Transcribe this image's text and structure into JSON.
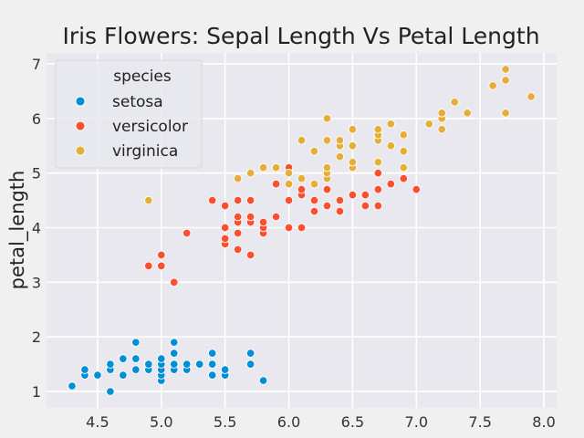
{
  "chart_data": {
    "type": "scatter",
    "title": "Iris Flowers: Sepal Length Vs Petal Length",
    "xlabel": "sepal_length",
    "ylabel": "petal_length",
    "xlim": [
      4.1,
      8.1
    ],
    "ylim": [
      0.7,
      7.2
    ],
    "xticks": [
      4.5,
      5.0,
      5.5,
      6.0,
      6.5,
      7.0,
      7.5,
      8.0
    ],
    "yticks": [
      1,
      2,
      3,
      4,
      5,
      6,
      7
    ],
    "grid": true,
    "legend": {
      "title": "species",
      "placement": "top-left"
    },
    "series": [
      {
        "name": "setosa",
        "color": "#008fd5",
        "points": [
          [
            4.3,
            1.1
          ],
          [
            4.4,
            1.3
          ],
          [
            4.4,
            1.4
          ],
          [
            4.5,
            1.3
          ],
          [
            4.6,
            1.0
          ],
          [
            4.6,
            1.4
          ],
          [
            4.6,
            1.5
          ],
          [
            4.7,
            1.3
          ],
          [
            4.7,
            1.6
          ],
          [
            4.8,
            1.4
          ],
          [
            4.8,
            1.6
          ],
          [
            4.8,
            1.9
          ],
          [
            4.9,
            1.4
          ],
          [
            4.9,
            1.5
          ],
          [
            5.0,
            1.2
          ],
          [
            5.0,
            1.3
          ],
          [
            5.0,
            1.4
          ],
          [
            5.0,
            1.5
          ],
          [
            5.0,
            1.6
          ],
          [
            5.1,
            1.4
          ],
          [
            5.1,
            1.5
          ],
          [
            5.1,
            1.7
          ],
          [
            5.1,
            1.9
          ],
          [
            5.2,
            1.4
          ],
          [
            5.2,
            1.5
          ],
          [
            5.3,
            1.5
          ],
          [
            5.4,
            1.3
          ],
          [
            5.4,
            1.5
          ],
          [
            5.4,
            1.7
          ],
          [
            5.5,
            1.3
          ],
          [
            5.5,
            1.4
          ],
          [
            5.7,
            1.5
          ],
          [
            5.7,
            1.7
          ],
          [
            5.8,
            1.2
          ]
        ]
      },
      {
        "name": "versicolor",
        "color": "#fc4f30",
        "points": [
          [
            4.9,
            3.3
          ],
          [
            5.0,
            3.3
          ],
          [
            5.0,
            3.5
          ],
          [
            5.1,
            3.0
          ],
          [
            5.2,
            3.9
          ],
          [
            5.4,
            4.5
          ],
          [
            5.5,
            3.7
          ],
          [
            5.5,
            3.8
          ],
          [
            5.5,
            4.0
          ],
          [
            5.5,
            4.4
          ],
          [
            5.6,
            3.6
          ],
          [
            5.6,
            3.9
          ],
          [
            5.6,
            4.1
          ],
          [
            5.6,
            4.2
          ],
          [
            5.6,
            4.5
          ],
          [
            5.7,
            3.5
          ],
          [
            5.7,
            4.1
          ],
          [
            5.7,
            4.2
          ],
          [
            5.7,
            4.5
          ],
          [
            5.8,
            3.9
          ],
          [
            5.8,
            4.0
          ],
          [
            5.8,
            4.1
          ],
          [
            5.9,
            4.2
          ],
          [
            5.9,
            4.8
          ],
          [
            6.0,
            4.0
          ],
          [
            6.0,
            4.5
          ],
          [
            6.0,
            5.1
          ],
          [
            6.1,
            4.0
          ],
          [
            6.1,
            4.6
          ],
          [
            6.1,
            4.7
          ],
          [
            6.2,
            4.3
          ],
          [
            6.2,
            4.5
          ],
          [
            6.3,
            4.4
          ],
          [
            6.3,
            4.7
          ],
          [
            6.3,
            4.9
          ],
          [
            6.4,
            4.3
          ],
          [
            6.4,
            4.5
          ],
          [
            6.5,
            4.6
          ],
          [
            6.6,
            4.4
          ],
          [
            6.6,
            4.6
          ],
          [
            6.7,
            4.4
          ],
          [
            6.7,
            4.7
          ],
          [
            6.7,
            5.0
          ],
          [
            6.8,
            4.8
          ],
          [
            6.9,
            4.9
          ],
          [
            7.0,
            4.7
          ]
        ]
      },
      {
        "name": "virginica",
        "color": "#e5ae38",
        "points": [
          [
            4.9,
            4.5
          ],
          [
            5.6,
            4.9
          ],
          [
            5.7,
            5.0
          ],
          [
            5.8,
            5.1
          ],
          [
            5.9,
            5.1
          ],
          [
            6.0,
            4.8
          ],
          [
            6.0,
            5.0
          ],
          [
            6.1,
            4.9
          ],
          [
            6.1,
            5.6
          ],
          [
            6.2,
            4.8
          ],
          [
            6.2,
            5.4
          ],
          [
            6.3,
            4.9
          ],
          [
            6.3,
            5.0
          ],
          [
            6.3,
            5.1
          ],
          [
            6.3,
            5.6
          ],
          [
            6.3,
            6.0
          ],
          [
            6.4,
            5.3
          ],
          [
            6.4,
            5.5
          ],
          [
            6.4,
            5.6
          ],
          [
            6.5,
            5.1
          ],
          [
            6.5,
            5.2
          ],
          [
            6.5,
            5.5
          ],
          [
            6.5,
            5.8
          ],
          [
            6.7,
            5.2
          ],
          [
            6.7,
            5.6
          ],
          [
            6.7,
            5.7
          ],
          [
            6.7,
            5.8
          ],
          [
            6.8,
            5.5
          ],
          [
            6.8,
            5.9
          ],
          [
            6.9,
            5.1
          ],
          [
            6.9,
            5.4
          ],
          [
            6.9,
            5.7
          ],
          [
            7.1,
            5.9
          ],
          [
            7.2,
            5.8
          ],
          [
            7.2,
            6.0
          ],
          [
            7.2,
            6.1
          ],
          [
            7.3,
            6.3
          ],
          [
            7.4,
            6.1
          ],
          [
            7.6,
            6.6
          ],
          [
            7.7,
            6.1
          ],
          [
            7.7,
            6.7
          ],
          [
            7.7,
            6.9
          ],
          [
            7.9,
            6.4
          ]
        ]
      }
    ]
  }
}
